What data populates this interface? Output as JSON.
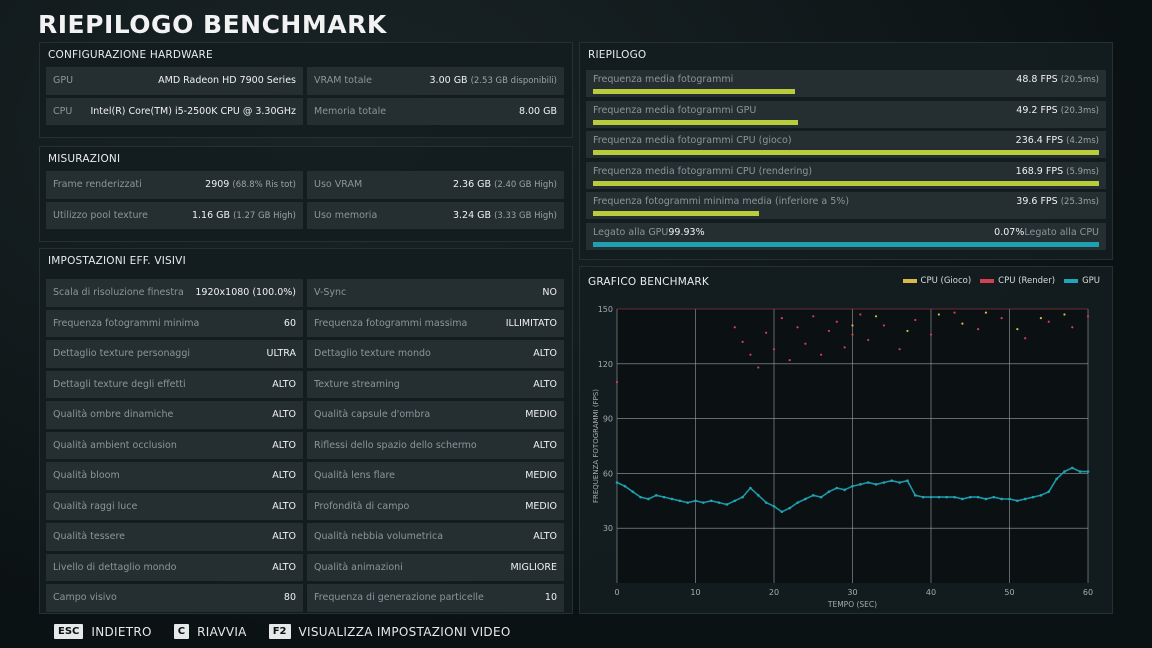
{
  "title": "RIEPILOGO BENCHMARK",
  "hardware": {
    "header": "CONFIGURAZIONE HARDWARE",
    "rows": [
      [
        {
          "label": "GPU",
          "value": "AMD Radeon HD 7900 Series",
          "sub": ""
        },
        {
          "label": "VRAM totale",
          "value": "3.00 GB",
          "sub": "(2.53 GB disponibili)"
        }
      ],
      [
        {
          "label": "CPU",
          "value": "Intel(R) Core(TM) i5-2500K CPU @ 3.30GHz",
          "sub": ""
        },
        {
          "label": "Memoria totale",
          "value": "8.00 GB",
          "sub": ""
        }
      ]
    ]
  },
  "measurements": {
    "header": "MISURAZIONI",
    "rows": [
      [
        {
          "label": "Frame renderizzati",
          "value": "2909",
          "sub": "(68.8% Ris tot)"
        },
        {
          "label": "Uso VRAM",
          "value": "2.36 GB",
          "sub": "(2.40 GB High)"
        }
      ],
      [
        {
          "label": "Utilizzo pool texture",
          "value": "1.16 GB",
          "sub": "(1.27 GB High)"
        },
        {
          "label": "Uso memoria",
          "value": "3.24 GB",
          "sub": "(3.33 GB High)"
        }
      ]
    ]
  },
  "visual": {
    "header": "IMPOSTAZIONI EFF. VISIVI",
    "rows": [
      [
        {
          "label": "Scala di risoluzione finestra",
          "value": "1920x1080 (100.0%)"
        },
        {
          "label": "V-Sync",
          "value": "NO"
        }
      ],
      [
        {
          "label": "Frequenza fotogrammi minima",
          "value": "60"
        },
        {
          "label": "Frequenza fotogrammi massima",
          "value": "ILLIMITATO"
        }
      ],
      [
        {
          "label": "Dettaglio texture personaggi",
          "value": "ULTRA"
        },
        {
          "label": "Dettaglio texture mondo",
          "value": "ALTO"
        }
      ],
      [
        {
          "label": "Dettagli texture degli effetti",
          "value": "ALTO"
        },
        {
          "label": "Texture streaming",
          "value": "ALTO"
        }
      ],
      [
        {
          "label": "Qualità ombre dinamiche",
          "value": "ALTO"
        },
        {
          "label": "Qualità capsule d'ombra",
          "value": "MEDIO"
        }
      ],
      [
        {
          "label": "Qualità ambient occlusion",
          "value": "ALTO"
        },
        {
          "label": "Riflessi dello spazio dello schermo",
          "value": "ALTO"
        }
      ],
      [
        {
          "label": "Qualità bloom",
          "value": "ALTO"
        },
        {
          "label": "Qualità lens flare",
          "value": "MEDIO"
        }
      ],
      [
        {
          "label": "Qualità raggi luce",
          "value": "ALTO"
        },
        {
          "label": "Profondità di campo",
          "value": "MEDIO"
        }
      ],
      [
        {
          "label": "Qualità tessere",
          "value": "ALTO"
        },
        {
          "label": "Qualità nebbia volumetrica",
          "value": "ALTO"
        }
      ],
      [
        {
          "label": "Livello di dettaglio mondo",
          "value": "ALTO"
        },
        {
          "label": "Qualità animazioni",
          "value": "MIGLIORE"
        }
      ],
      [
        {
          "label": "Campo visivo",
          "value": "80"
        },
        {
          "label": "Frequenza di generazione particelle",
          "value": "10"
        }
      ]
    ]
  },
  "summary": {
    "header": "RIEPILOGO",
    "rows": [
      {
        "label": "Frequenza media fotogrammi",
        "value": "48.8 FPS",
        "sub": "(20.5ms)",
        "fill": 0.4
      },
      {
        "label": "Frequenza media fotogrammi GPU",
        "value": "49.2 FPS",
        "sub": "(20.3ms)",
        "fill": 0.405
      },
      {
        "label": "Frequenza media fotogrammi CPU (gioco)",
        "value": "236.4 FPS",
        "sub": "(4.2ms)",
        "fill": 1.0
      },
      {
        "label": "Frequenza media fotogrammi CPU (rendering)",
        "value": "168.9 FPS",
        "sub": "(5.9ms)",
        "fill": 1.0
      },
      {
        "label": "Frequenza fotogrammi minima media (inferiore a 5%)",
        "value": "39.6 FPS",
        "sub": "(25.3ms)",
        "fill": 0.328
      }
    ],
    "gpu_bound": {
      "label": "Legato alla GPU",
      "value": "99.93%",
      "cpu_value": "0.07%",
      "cpu_label": "Legato alla CPU",
      "fill": 0.9993
    }
  },
  "chart_header": "GRAFICO BENCHMARK",
  "colors": {
    "cpu_game": "#d8b94a",
    "cpu_render": "#d2414f",
    "gpu": "#1fa5b8",
    "bar": "#b8cc3c"
  },
  "chart_data": {
    "type": "scatter",
    "xlabel": "TEMPO (SEC)",
    "ylabel": "FREQUENZA FOTOGRAMMI (FPS)",
    "xlim": [
      0,
      60
    ],
    "ylim": [
      0,
      150
    ],
    "x_ticks": [
      0,
      10,
      20,
      30,
      40,
      50,
      60
    ],
    "y_ticks": [
      30,
      60,
      90,
      120,
      150
    ],
    "legend": [
      "CPU (Gioco)",
      "CPU (Render)",
      "GPU"
    ],
    "series": [
      {
        "name": "GPU",
        "points": [
          [
            0,
            55
          ],
          [
            1,
            53
          ],
          [
            2,
            50
          ],
          [
            3,
            47
          ],
          [
            4,
            46
          ],
          [
            5,
            48
          ],
          [
            6,
            47
          ],
          [
            7,
            46
          ],
          [
            8,
            45
          ],
          [
            9,
            44
          ],
          [
            10,
            45
          ],
          [
            11,
            44
          ],
          [
            12,
            45
          ],
          [
            13,
            44
          ],
          [
            14,
            43
          ],
          [
            15,
            45
          ],
          [
            16,
            47
          ],
          [
            17,
            52
          ],
          [
            18,
            48
          ],
          [
            19,
            44
          ],
          [
            20,
            42
          ],
          [
            21,
            39
          ],
          [
            22,
            41
          ],
          [
            23,
            44
          ],
          [
            24,
            46
          ],
          [
            25,
            48
          ],
          [
            26,
            47
          ],
          [
            27,
            50
          ],
          [
            28,
            52
          ],
          [
            29,
            51
          ],
          [
            30,
            53
          ],
          [
            31,
            54
          ],
          [
            32,
            55
          ],
          [
            33,
            54
          ],
          [
            34,
            55
          ],
          [
            35,
            56
          ],
          [
            36,
            55
          ],
          [
            37,
            56
          ],
          [
            38,
            48
          ],
          [
            39,
            47
          ],
          [
            40,
            47
          ],
          [
            41,
            47
          ],
          [
            42,
            47
          ],
          [
            43,
            47
          ],
          [
            44,
            46
          ],
          [
            45,
            47
          ],
          [
            46,
            47
          ],
          [
            47,
            46
          ],
          [
            48,
            47
          ],
          [
            49,
            46
          ],
          [
            50,
            46
          ],
          [
            51,
            45
          ],
          [
            52,
            46
          ],
          [
            53,
            47
          ],
          [
            54,
            48
          ],
          [
            55,
            50
          ],
          [
            56,
            57
          ],
          [
            57,
            61
          ],
          [
            58,
            63
          ],
          [
            59,
            61
          ],
          [
            60,
            61
          ]
        ]
      },
      {
        "name": "CPU (Render)",
        "points": [
          [
            0,
            110
          ],
          [
            15,
            140
          ],
          [
            16,
            132
          ],
          [
            17,
            125
          ],
          [
            18,
            118
          ],
          [
            19,
            137
          ],
          [
            20,
            128
          ],
          [
            21,
            145
          ],
          [
            22,
            122
          ],
          [
            23,
            140
          ],
          [
            24,
            131
          ],
          [
            25,
            146
          ],
          [
            26,
            125
          ],
          [
            27,
            138
          ],
          [
            28,
            143
          ],
          [
            29,
            129
          ],
          [
            30,
            136
          ],
          [
            31,
            147
          ],
          [
            32,
            133
          ],
          [
            34,
            141
          ],
          [
            36,
            128
          ],
          [
            38,
            144
          ],
          [
            40,
            136
          ],
          [
            43,
            148
          ],
          [
            46,
            139
          ],
          [
            49,
            145
          ],
          [
            52,
            134
          ],
          [
            55,
            143
          ],
          [
            58,
            140
          ],
          [
            60,
            146
          ]
        ]
      },
      {
        "name": "CPU (Gioco)",
        "points": [
          [
            30,
            141
          ],
          [
            33,
            146
          ],
          [
            37,
            138
          ],
          [
            41,
            147
          ],
          [
            44,
            142
          ],
          [
            47,
            148
          ],
          [
            51,
            139
          ],
          [
            54,
            145
          ],
          [
            57,
            147
          ]
        ]
      }
    ]
  },
  "footer": [
    {
      "key": "ESC",
      "label": "INDIETRO"
    },
    {
      "key": "C",
      "label": "RIAVVIA"
    },
    {
      "key": "F2",
      "label": "VISUALIZZA IMPOSTAZIONI VIDEO"
    }
  ]
}
